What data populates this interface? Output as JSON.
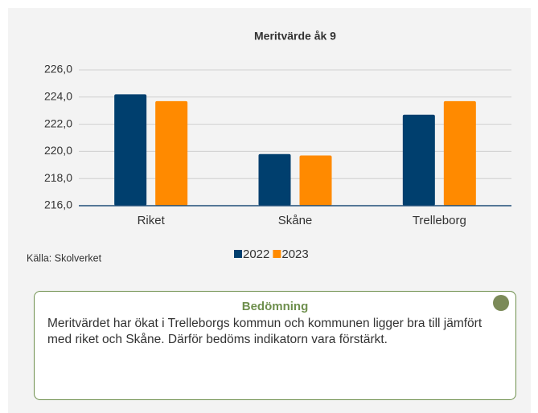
{
  "chart_data": {
    "type": "bar",
    "title": "Meritvärde åk 9",
    "categories": [
      "Riket",
      "Skåne",
      "Trelleborg"
    ],
    "series": [
      {
        "name": "2022",
        "color": "#003f6e",
        "values": [
          224.2,
          219.8,
          222.7
        ]
      },
      {
        "name": "2023",
        "color": "#ff8a00",
        "values": [
          223.7,
          219.7,
          223.7
        ]
      }
    ],
    "ylim": [
      216,
      226
    ],
    "yticks": [
      {
        "value": 216,
        "label": "216,0"
      },
      {
        "value": 218,
        "label": "218,0"
      },
      {
        "value": 220,
        "label": "220,0"
      },
      {
        "value": 222,
        "label": "222,0"
      },
      {
        "value": 224,
        "label": "224,0"
      },
      {
        "value": 226,
        "label": "226,0"
      }
    ],
    "grid": true,
    "legend": "bottom"
  },
  "source": "Källa: Skolverket",
  "assessment": {
    "title": "Bedömning",
    "text": "Meritvärdet har ökat i Trelleborgs kommun och kommunen ligger bra till jämfört med riket och Skåne. Därför bedöms indikatorn vara förstärkt."
  }
}
